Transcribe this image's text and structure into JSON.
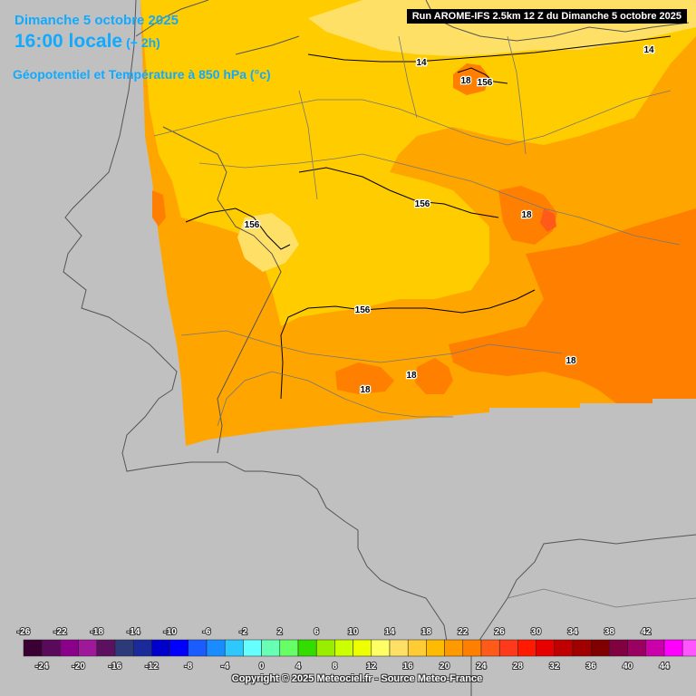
{
  "header": {
    "date": "Dimanche 5 octobre 2025",
    "time": "16:00 locale",
    "time_offset": "(+ 2h)",
    "variable": "Géopotentiel et Température à 850 hPa (°c)",
    "run_info": "Run AROME-IFS 2.5km 12 Z du Dimanche 5 octobre 2025"
  },
  "map_labels": [
    {
      "text": "14",
      "kind": "isotherm"
    },
    {
      "text": "14",
      "kind": "isotherm"
    },
    {
      "text": "18",
      "kind": "isotherm"
    },
    {
      "text": "156",
      "kind": "geopotential"
    },
    {
      "text": "156",
      "kind": "geopotential"
    },
    {
      "text": "18",
      "kind": "isotherm"
    },
    {
      "text": "156",
      "kind": "geopotential"
    },
    {
      "text": "156",
      "kind": "geopotential"
    },
    {
      "text": "18",
      "kind": "isotherm"
    },
    {
      "text": "18",
      "kind": "isotherm"
    },
    {
      "text": "18",
      "kind": "isotherm"
    }
  ],
  "legend": {
    "ticks_top": [
      "-26",
      "-22",
      "-18",
      "-14",
      "-10",
      "-6",
      "-2",
      "2",
      "6",
      "10",
      "14",
      "18",
      "22",
      "26",
      "30",
      "34",
      "38",
      "42"
    ],
    "ticks_bottom": [
      "-24",
      "-20",
      "-16",
      "-12",
      "-8",
      "-4",
      "0",
      "4",
      "8",
      "12",
      "16",
      "20",
      "24",
      "28",
      "32",
      "36",
      "40",
      "44"
    ],
    "colors": [
      "#3a0033",
      "#5a0a5a",
      "#8a008a",
      "#a0189a",
      "#5c1060",
      "#2c3a7a",
      "#1a2a9a",
      "#0000cc",
      "#0000ff",
      "#1a5cff",
      "#1a8cff",
      "#2ec8ff",
      "#66ffff",
      "#66ffb3",
      "#66ff66",
      "#33dd00",
      "#99ee00",
      "#ccff00",
      "#eeff00",
      "#ffff66",
      "#ffe066",
      "#ffcc33",
      "#ffbb00",
      "#ff9900",
      "#ff7f00",
      "#ff5a1a",
      "#ff3a1a",
      "#ff1a00",
      "#e60000",
      "#c00000",
      "#a00000",
      "#800000",
      "#800040",
      "#990060",
      "#cc00aa",
      "#ff00ff",
      "#ff55ff",
      "#ff88ff"
    ]
  },
  "copyright": "Copyright © 2025 Meteociel.fr - Source Meteo-France",
  "colors": {
    "background": "#c0c0c0",
    "title_text": "#11aaff",
    "t12": "#ffe066",
    "t14": "#ffcc00",
    "t16": "#ffa500",
    "t18": "#ff7f00",
    "t20": "#ff5a1a",
    "contour": "#000000",
    "border": "#555555"
  }
}
